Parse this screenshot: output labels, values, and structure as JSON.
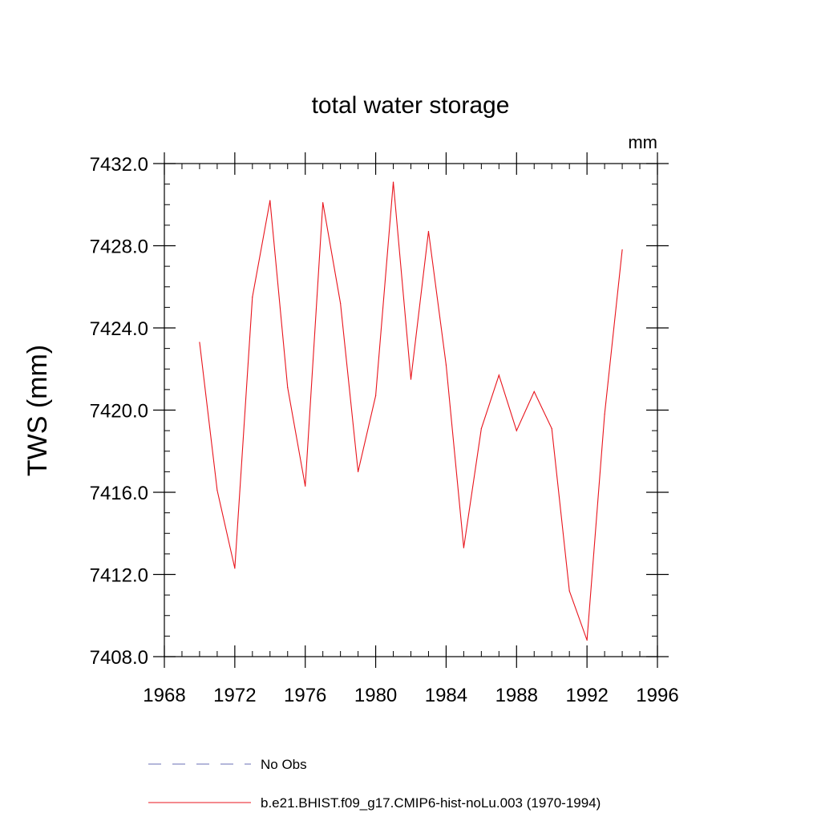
{
  "chart_data": {
    "type": "line",
    "title": "total water storage",
    "units": "mm",
    "ylabel": "TWS  (mm)",
    "xlim": [
      1968,
      1996
    ],
    "ylim": [
      7408.0,
      7432.0
    ],
    "x_ticks": [
      1968,
      1972,
      1976,
      1980,
      1984,
      1988,
      1992,
      1996
    ],
    "y_ticks": [
      7408.0,
      7412.0,
      7416.0,
      7420.0,
      7424.0,
      7428.0,
      7432.0
    ],
    "y_tick_labels": [
      "7408.0",
      "7412.0",
      "7416.0",
      "7420.0",
      "7424.0",
      "7428.0",
      "7432.0"
    ],
    "grid": false,
    "legend_position": "bottom",
    "series": [
      {
        "name": "No Obs",
        "color": "#6a6fb4",
        "dash": "dashed",
        "x": [],
        "values": []
      },
      {
        "name": "b.e21.BHIST.f09_g17.CMIP6-hist-noLu.003 (1970-1994)",
        "color": "#e8141c",
        "dash": "solid",
        "x": [
          1970,
          1971,
          1972,
          1973,
          1974,
          1975,
          1976,
          1977,
          1978,
          1979,
          1980,
          1981,
          1982,
          1983,
          1984,
          1985,
          1986,
          1987,
          1988,
          1989,
          1990,
          1991,
          1992,
          1993,
          1994
        ],
        "values": [
          7423.3,
          7416.1,
          7412.3,
          7425.5,
          7430.2,
          7421.1,
          7416.3,
          7430.1,
          7425.2,
          7417.0,
          7420.7,
          7431.1,
          7421.5,
          7428.7,
          7422.2,
          7413.3,
          7419.1,
          7421.7,
          7419.0,
          7420.9,
          7419.1,
          7411.2,
          7408.8,
          7419.8,
          7427.8
        ]
      }
    ]
  }
}
